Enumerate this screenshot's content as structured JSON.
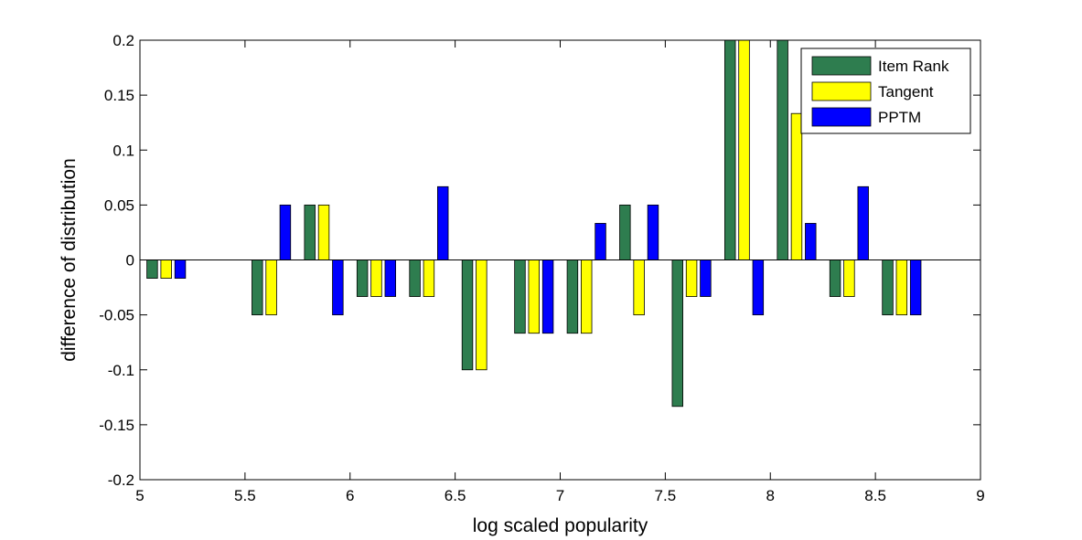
{
  "chart_data": {
    "type": "bar",
    "xlabel": "log scaled popularity",
    "ylabel": "difference of distribution",
    "xlim": [
      5,
      9
    ],
    "ylim": [
      -0.2,
      0.2
    ],
    "x_ticks": [
      5,
      5.5,
      6,
      6.5,
      7,
      7.5,
      8,
      8.5,
      9
    ],
    "x_tick_labels": [
      "5",
      "5.5",
      "6",
      "6.5",
      "7",
      "7.5",
      "8",
      "8.5",
      "9"
    ],
    "y_ticks": [
      -0.2,
      -0.15,
      -0.1,
      -0.05,
      0,
      0.05,
      0.1,
      0.15,
      0.2
    ],
    "y_tick_labels": [
      "-0.2",
      "-0.15",
      "-0.1",
      "-0.05",
      "0",
      "0.05",
      "0.1",
      "0.15",
      "0.2"
    ],
    "grid": false,
    "legend_position": "top-right",
    "x": [
      5.125,
      5.625,
      5.875,
      6.125,
      6.375,
      6.625,
      6.875,
      7.125,
      7.375,
      7.625,
      7.875,
      8.125,
      8.375,
      8.625
    ],
    "series": [
      {
        "name": "Item Rank",
        "color": "#2e7d4f",
        "values": [
          -0.0167,
          -0.05,
          0.05,
          -0.0333,
          -0.0333,
          -0.1,
          -0.0667,
          -0.0667,
          0.05,
          -0.1333,
          0.2,
          0.2,
          -0.0333,
          -0.05
        ]
      },
      {
        "name": "Tangent",
        "color": "#ffff00",
        "values": [
          -0.0167,
          -0.05,
          0.05,
          -0.0333,
          -0.0333,
          -0.1,
          -0.0667,
          -0.0667,
          -0.05,
          -0.0333,
          0.2,
          0.1333,
          -0.0333,
          -0.05
        ]
      },
      {
        "name": "PPTM",
        "color": "#0000ff",
        "values": [
          -0.0167,
          0.05,
          -0.05,
          -0.0333,
          0.0667,
          0,
          -0.0667,
          0.0333,
          0.05,
          -0.0333,
          -0.05,
          0.0333,
          0.0667,
          -0.05
        ]
      }
    ]
  }
}
